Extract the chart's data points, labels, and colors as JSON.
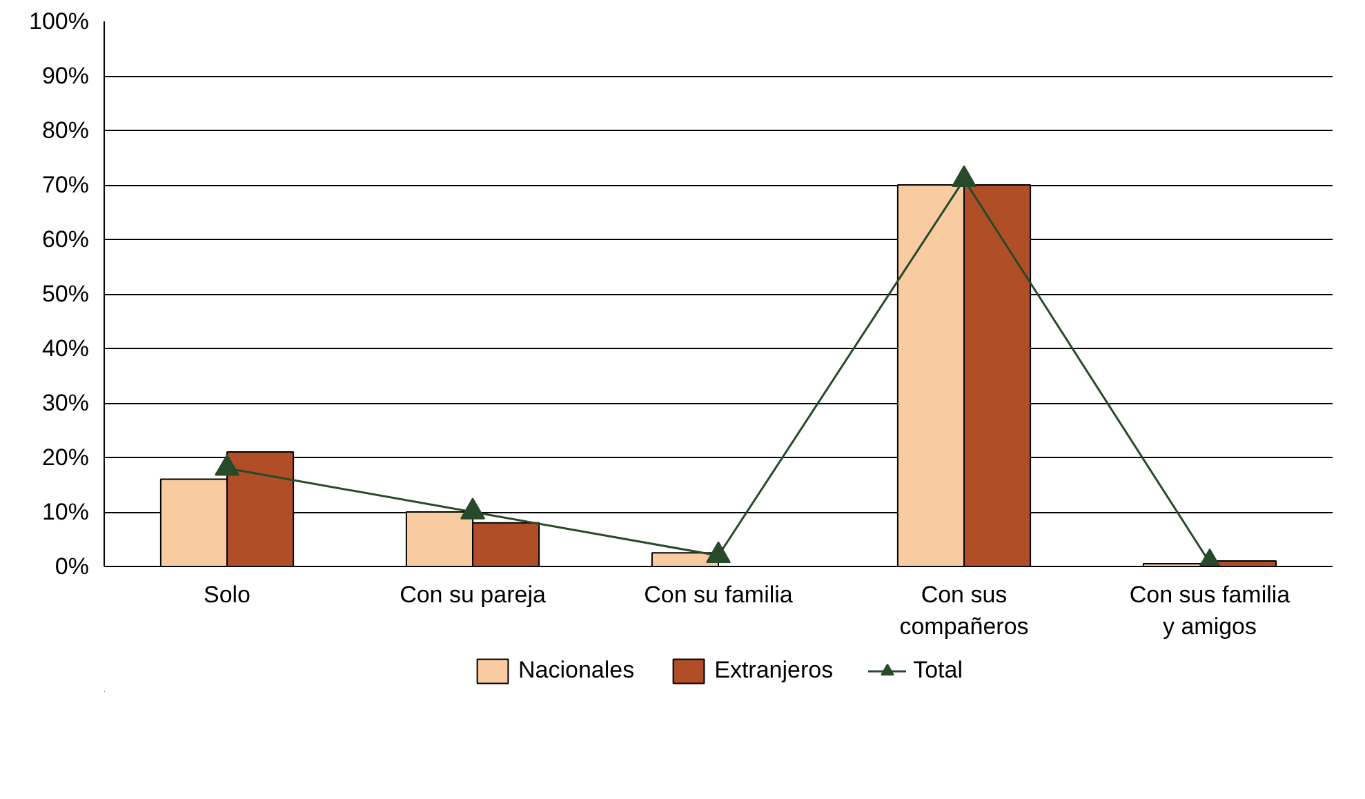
{
  "chart_data": {
    "type": "bar",
    "categories": [
      "Solo",
      "Con su pareja",
      "Con su familia",
      "Con sus\ncompañeros",
      "Con sus familia\ny amigos"
    ],
    "series": [
      {
        "name": "Nacionales",
        "color": "#f8cba0",
        "values": [
          16,
          10,
          2.5,
          70,
          0.5
        ]
      },
      {
        "name": "Extranjeros",
        "color": "#b04e27",
        "values": [
          21,
          8,
          null,
          70,
          1
        ]
      },
      {
        "name": "Total",
        "type": "line",
        "color": "#264a2a",
        "marker": "triangle",
        "values": [
          18,
          10,
          2,
          71,
          0.7
        ]
      }
    ],
    "ylim": [
      0,
      100
    ],
    "yticks": [
      {
        "value": 0,
        "label": "0%"
      },
      {
        "value": 10,
        "label": "10%"
      },
      {
        "value": 20,
        "label": "20%"
      },
      {
        "value": 30,
        "label": "30%"
      },
      {
        "value": 40,
        "label": "40%"
      },
      {
        "value": 50,
        "label": "50%"
      },
      {
        "value": 60,
        "label": "60%"
      },
      {
        "value": 70,
        "label": "70%"
      },
      {
        "value": 80,
        "label": "80%"
      },
      {
        "value": 90,
        "label": "90%"
      },
      {
        "value": 100,
        "label": "100%"
      }
    ],
    "grid": "y",
    "legend": "bottom"
  }
}
